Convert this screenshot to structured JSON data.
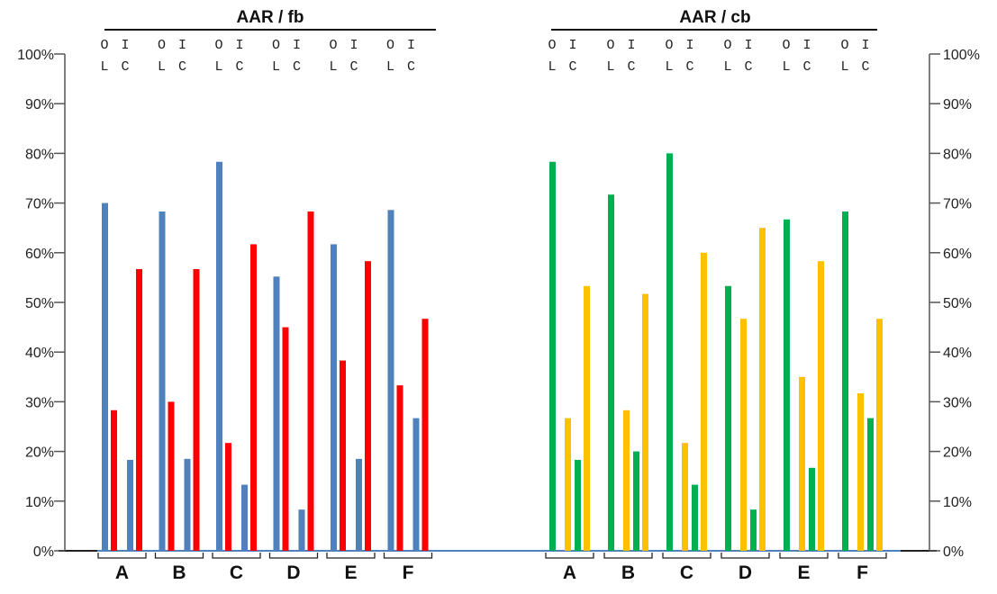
{
  "chart_data": {
    "type": "bar",
    "ylim": [
      0,
      100
    ],
    "y_ticks": [
      "0%",
      "10%",
      "20%",
      "30%",
      "40%",
      "50%",
      "60%",
      "70%",
      "80%",
      "90%",
      "100%"
    ],
    "grid": false,
    "bar_letters": [
      "O",
      "I",
      "L",
      "C"
    ],
    "panels": [
      {
        "title": "AAR / fb",
        "categories": [
          "A",
          "B",
          "C",
          "D",
          "E",
          "F"
        ],
        "colors": [
          "#4f81bd",
          "#ff0000",
          "#4f81bd",
          "#ff0000"
        ],
        "series": [
          {
            "values": [
              70,
              68.3,
              78.3,
              55.2,
              61.7,
              68.6
            ]
          },
          {
            "values": [
              28.3,
              30,
              21.7,
              45,
              38.3,
              33.3
            ]
          },
          {
            "values": [
              18.3,
              18.5,
              13.3,
              8.3,
              18.5,
              26.7
            ]
          },
          {
            "values": [
              56.7,
              56.7,
              61.7,
              68.3,
              58.3,
              46.7
            ]
          }
        ]
      },
      {
        "title": "AAR / cb",
        "categories": [
          "A",
          "B",
          "C",
          "D",
          "E",
          "F"
        ],
        "colors": [
          "#00b050",
          "#ffc000",
          "#00b050",
          "#ffc000"
        ],
        "series": [
          {
            "values": [
              78.3,
              71.7,
              80,
              53.3,
              66.7,
              68.3
            ]
          },
          {
            "values": [
              26.7,
              28.3,
              21.7,
              46.7,
              35,
              31.7
            ]
          },
          {
            "values": [
              18.3,
              20,
              13.3,
              8.3,
              16.7,
              26.7
            ]
          },
          {
            "values": [
              53.3,
              51.7,
              60,
              65,
              58.3,
              46.7
            ]
          }
        ]
      }
    ]
  }
}
